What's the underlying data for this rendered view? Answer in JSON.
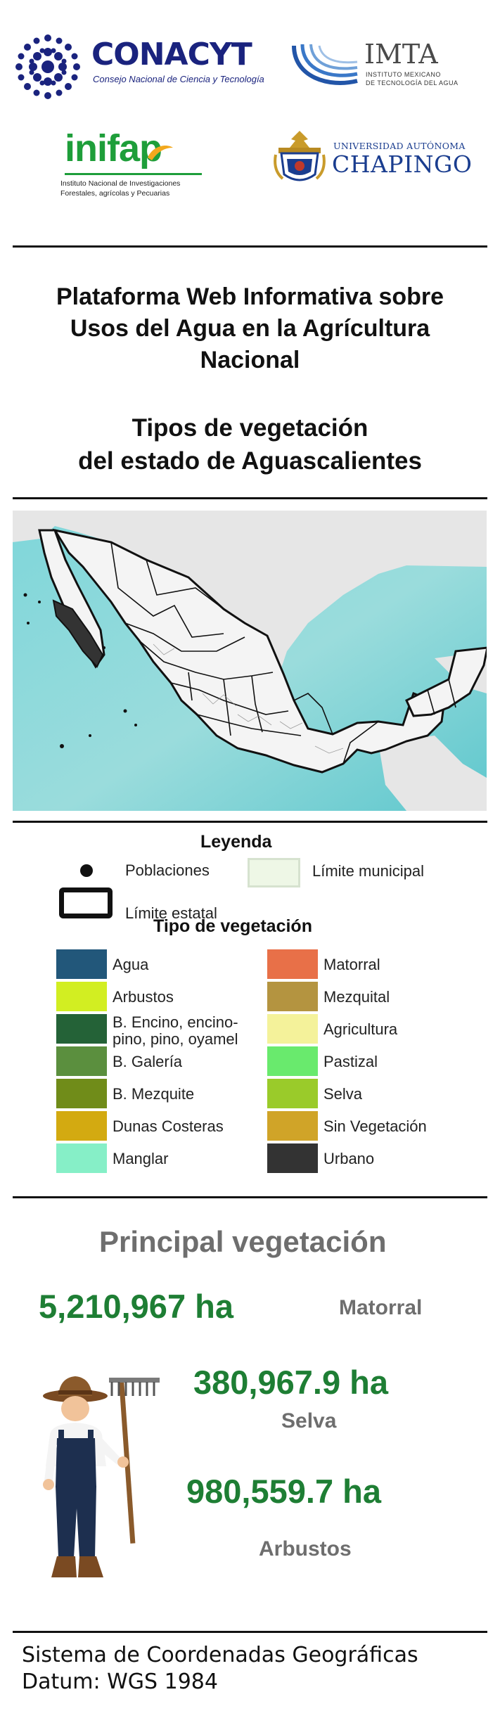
{
  "logos": {
    "conacyt": {
      "name": "CONACYT",
      "subtitle": "Consejo Nacional de Ciencia y Tecnología"
    },
    "imta": {
      "name": "IMTA",
      "subtitle_line1": "INSTITUTO MEXICANO",
      "subtitle_line2": "DE TECNOLOGÍA DEL AGUA"
    },
    "inifap": {
      "name": "inifap",
      "subtitle_line1": "Instituto Nacional de Investigaciones",
      "subtitle_line2": "Forestales, agrícolas y Pecuarias"
    },
    "chapingo": {
      "top": "UNIVERSIDAD AUTÓNOMA",
      "name": "CHAPINGO"
    }
  },
  "title": {
    "line1": "Plataforma Web Informativa sobre",
    "line2": "Usos del Agua en la Agrícultura",
    "line3": "Nacional"
  },
  "subtitle": {
    "line1": "Tipos de vegetación",
    "line2": "del estado de Aguascalientes"
  },
  "legend": {
    "heading": "Leyenda",
    "poblaciones": "Poblaciones",
    "limite_municipal": "Límite municipal",
    "limite_estatal": "Límite estatal",
    "vegetation_heading": "Tipo de vegetación",
    "left": [
      {
        "label": "Agua",
        "color": "#22577a"
      },
      {
        "label": "Arbustos",
        "color": "#d2ee22"
      },
      {
        "label": "B. Encino, encino-pino, pino, oyamel",
        "color": "#246237"
      },
      {
        "label": "B. Galería",
        "color": "#5b8f3e"
      },
      {
        "label": "B. Mezquite",
        "color": "#708c19"
      },
      {
        "label": "Dunas Costeras",
        "color": "#d3aa11"
      },
      {
        "label": "Manglar",
        "color": "#86efc7"
      }
    ],
    "right": [
      {
        "label": "Matorral",
        "color": "#e87048"
      },
      {
        "label": "Mezquital",
        "color": "#b49440"
      },
      {
        "label": "Agricultura",
        "color": "#f4f29a"
      },
      {
        "label": "Pastizal",
        "color": "#69ea6d"
      },
      {
        "label": "Selva",
        "color": "#9acb2a"
      },
      {
        "label": "Sin Vegetación",
        "color": "#d0a428"
      },
      {
        "label": "Urbano",
        "color": "#333333"
      }
    ]
  },
  "stats": {
    "heading": "Principal vegetación",
    "items": [
      {
        "value": "5,210,967 ha",
        "name": "Matorral"
      },
      {
        "value": "380,967.9 ha",
        "name": "Selva"
      },
      {
        "value": "980,559.7 ha",
        "name": "Arbustos"
      }
    ]
  },
  "footer": {
    "line1": "Sistema de Coordenadas Geográficas",
    "line2": "Datum: WGS 1984"
  }
}
